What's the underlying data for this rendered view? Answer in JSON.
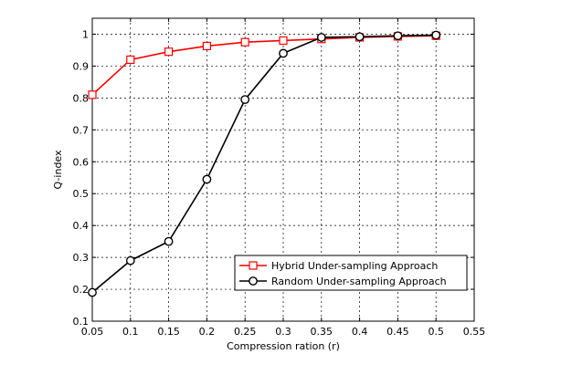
{
  "chart_data": {
    "type": "line",
    "xlabel": "Compression ration (r)",
    "ylabel": "Q-index",
    "xlim": [
      0.05,
      0.55
    ],
    "ylim": [
      0.1,
      1.05
    ],
    "x_ticks": [
      0.05,
      0.1,
      0.15,
      0.2,
      0.25,
      0.3,
      0.35,
      0.4,
      0.45,
      0.5,
      0.55
    ],
    "x_tick_labels": [
      "0.05",
      "0.1",
      "0.15",
      "0.2",
      "0.25",
      "0.3",
      "0.35",
      "0.4",
      "0.45",
      "0.5",
      "0.55"
    ],
    "y_ticks": [
      0.1,
      0.2,
      0.3,
      0.4,
      0.5,
      0.6,
      0.7,
      0.8,
      0.9,
      1.0
    ],
    "y_tick_labels": [
      "0.1",
      "0.2",
      "0.3",
      "0.4",
      "0.5",
      "0.6",
      "0.7",
      "0.8",
      "0.9",
      "1"
    ],
    "grid": true,
    "legend_position": "bottom-right",
    "series": [
      {
        "name": "Hybrid Under-sampling Approach",
        "color": "#ff0000",
        "marker": "square",
        "x": [
          0.05,
          0.1,
          0.15,
          0.2,
          0.25,
          0.3,
          0.35,
          0.4,
          0.45,
          0.5
        ],
        "values": [
          0.81,
          0.92,
          0.945,
          0.963,
          0.975,
          0.98,
          0.985,
          0.99,
          0.993,
          0.995
        ]
      },
      {
        "name": "Random Under-sampling Approach",
        "color": "#000000",
        "marker": "circle",
        "x": [
          0.05,
          0.1,
          0.15,
          0.2,
          0.25,
          0.3,
          0.35,
          0.4,
          0.45,
          0.5
        ],
        "values": [
          0.19,
          0.29,
          0.35,
          0.545,
          0.795,
          0.94,
          0.99,
          0.992,
          0.995,
          0.997
        ]
      }
    ]
  }
}
